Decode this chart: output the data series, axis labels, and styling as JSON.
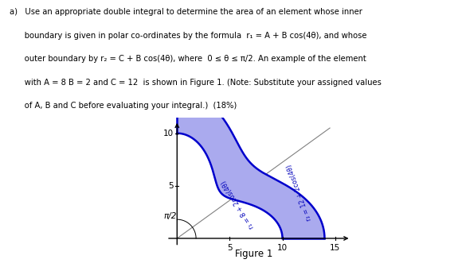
{
  "A": 8,
  "B": 2,
  "C": 12,
  "theta_min": 0,
  "theta_max": 1.5707963267948966,
  "r1_label": "r₁ = 8 + 2cos(4θ)",
  "r2_label": "r₂ = 12 + 2cos(4θ)",
  "pi_half_label": "π/2",
  "figure_label": "Figure 1",
  "x_ticks": [
    5,
    10,
    15
  ],
  "y_ticks": [
    5,
    10
  ],
  "fill_color": "#aaaaee",
  "line_color": "#0000cc",
  "text_color": "#0000bb",
  "xlim": [
    -1.5,
    17
  ],
  "ylim": [
    -1.2,
    11.5
  ],
  "figsize": [
    5.8,
    3.36
  ],
  "dpi": 100,
  "line1_text": "a)   Use an appropriate double integral to determine the area of an element whose inner",
  "line2_text": "      boundary is given in polar co-ordinates by the formula  r₁ = A + B cos(4θ), and whose",
  "line3_text": "      outer boundary by r₂ = C + B cos(4θ), where  0 ≤ θ ≤ π/2. An example of the element",
  "line4_text": "      with A = 8 B = 2 and C = 12  is shown in Figure 1. (Note: Substitute your assigned values",
  "line5_text": "      of A, B and C before evaluating your integral.)  (18%)",
  "guide_line_end_x": 14.5,
  "guide_line_end_y": 10.5
}
